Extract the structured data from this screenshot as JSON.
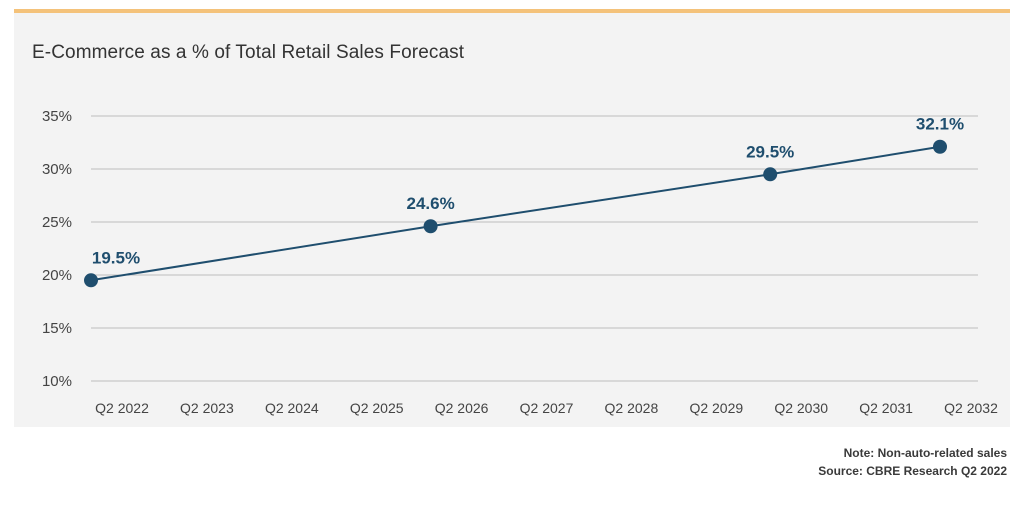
{
  "chart_data": {
    "type": "line",
    "title": "E-Commerce as a % of Total Retail Sales Forecast",
    "categories": [
      "Q2 2022",
      "Q2 2023",
      "Q2 2024",
      "Q2 2025",
      "Q2 2026",
      "Q2 2027",
      "Q2 2028",
      "Q2 2029",
      "Q2 2030",
      "Q2 2031",
      "Q2 2032"
    ],
    "y_ticks": [
      "35%",
      "30%",
      "25%",
      "20%",
      "15%",
      "10%"
    ],
    "ylim": [
      10,
      35
    ],
    "grid": true,
    "points": [
      {
        "x": 0,
        "y": 19.5,
        "label": "19.5%"
      },
      {
        "x": 4,
        "y": 24.6,
        "label": "24.6%"
      },
      {
        "x": 8,
        "y": 29.5,
        "label": "29.5%"
      },
      {
        "x": 10,
        "y": 32.1,
        "label": "32.1%"
      }
    ],
    "colors": {
      "line": "#1f4e6e",
      "label": "#1f4e6e",
      "accent": "#f4c27a"
    }
  },
  "footer": {
    "note": "Note: Non-auto-related sales",
    "source": "Source: CBRE Research Q2 2022"
  }
}
